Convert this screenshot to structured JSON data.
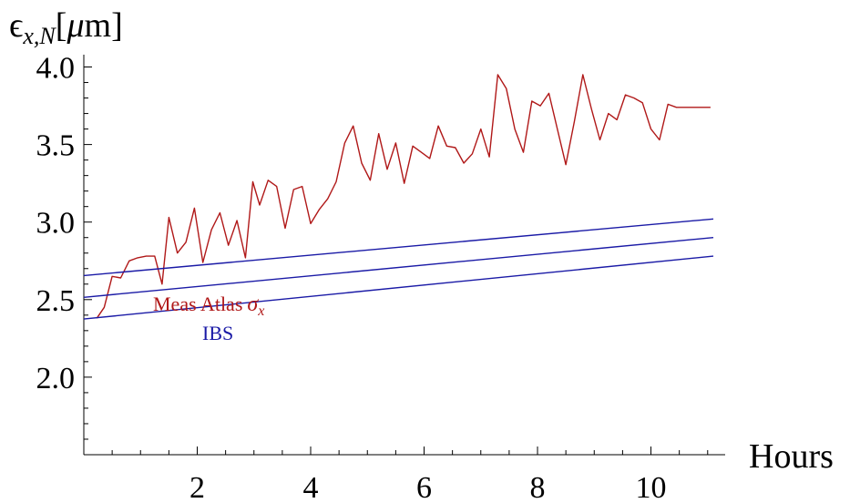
{
  "chart_data": {
    "type": "line",
    "xlabel": "Hours",
    "ylabel": {
      "symbol": "ϵ",
      "subscript": "x,N",
      "unit_open": "[",
      "unit_mu": "μ",
      "unit_rest": "m]"
    },
    "xlim": [
      0,
      11.1
    ],
    "ylim": [
      1.5,
      4.05
    ],
    "x_ticks_major": [
      2,
      4,
      6,
      8,
      10
    ],
    "x_ticks_major_labels": [
      "2",
      "4",
      "6",
      "8",
      "10"
    ],
    "x_ticks_minor": [
      0.5,
      1,
      1.5,
      2.5,
      3,
      3.5,
      4.5,
      5,
      5.5,
      6.5,
      7,
      7.5,
      8.5,
      9,
      9.5,
      10.5,
      11
    ],
    "y_ticks_major": [
      2.0,
      2.5,
      3.0,
      3.5,
      4.0
    ],
    "y_ticks_major_labels": [
      "2.0",
      "2.5",
      "3.0",
      "3.5",
      "4.0"
    ],
    "y_ticks_minor": [
      1.6,
      1.7,
      1.8,
      1.9,
      2.1,
      2.2,
      2.3,
      2.4,
      2.6,
      2.7,
      2.8,
      2.9,
      3.1,
      3.2,
      3.3,
      3.4,
      3.6,
      3.7,
      3.8,
      3.9
    ],
    "legend": [
      {
        "text": "Meas Atlas",
        "symbol": "σ",
        "subscript": "x",
        "color": "#b01818"
      },
      {
        "text": "IBS",
        "color": "#1a1aa6"
      }
    ],
    "series": [
      {
        "name": "Meas Atlas σx",
        "color": "#b01818",
        "x": [
          0.23,
          0.36,
          0.5,
          0.65,
          0.8,
          0.95,
          1.1,
          1.25,
          1.38,
          1.5,
          1.65,
          1.8,
          1.95,
          2.1,
          2.25,
          2.4,
          2.55,
          2.7,
          2.85,
          2.98,
          3.1,
          3.25,
          3.4,
          3.55,
          3.7,
          3.85,
          4.0,
          4.15,
          4.3,
          4.45,
          4.6,
          4.75,
          4.9,
          5.05,
          5.2,
          5.35,
          5.5,
          5.65,
          5.8,
          5.95,
          6.1,
          6.25,
          6.4,
          6.55,
          6.7,
          6.85,
          7.0,
          7.15,
          7.3,
          7.45,
          7.6,
          7.75,
          7.9,
          8.05,
          8.2,
          8.35,
          8.5,
          8.65,
          8.8,
          8.95,
          9.1,
          9.25,
          9.4,
          9.55,
          9.7,
          9.85,
          10.0,
          10.15,
          10.3,
          10.45,
          10.6,
          10.75,
          10.9,
          11.05
        ],
        "y": [
          2.38,
          2.45,
          2.65,
          2.64,
          2.75,
          2.77,
          2.78,
          2.78,
          2.6,
          3.03,
          2.8,
          2.87,
          3.09,
          2.74,
          2.95,
          3.06,
          2.85,
          3.01,
          2.77,
          3.26,
          3.11,
          3.27,
          3.23,
          2.96,
          3.21,
          3.23,
          2.99,
          3.08,
          3.15,
          3.26,
          3.51,
          3.62,
          3.38,
          3.27,
          3.57,
          3.34,
          3.51,
          3.25,
          3.49,
          3.45,
          3.41,
          3.62,
          3.49,
          3.48,
          3.38,
          3.44,
          3.6,
          3.42,
          3.95,
          3.86,
          3.6,
          3.45,
          3.78,
          3.75,
          3.83,
          3.6,
          3.37,
          3.65,
          3.95,
          3.73,
          3.53,
          3.7,
          3.66,
          3.82,
          3.8,
          3.77,
          3.6,
          3.53,
          3.76,
          3.74,
          3.74,
          3.74,
          3.74,
          3.74
        ]
      },
      {
        "name": "IBS upper",
        "color": "#1a1aa6",
        "x": [
          0,
          11.1
        ],
        "y": [
          2.655,
          3.02
        ]
      },
      {
        "name": "IBS middle",
        "color": "#1a1aa6",
        "x": [
          0,
          11.1
        ],
        "y": [
          2.515,
          2.9
        ]
      },
      {
        "name": "IBS lower",
        "color": "#1a1aa6",
        "x": [
          0,
          11.1
        ],
        "y": [
          2.375,
          2.78
        ]
      }
    ]
  }
}
